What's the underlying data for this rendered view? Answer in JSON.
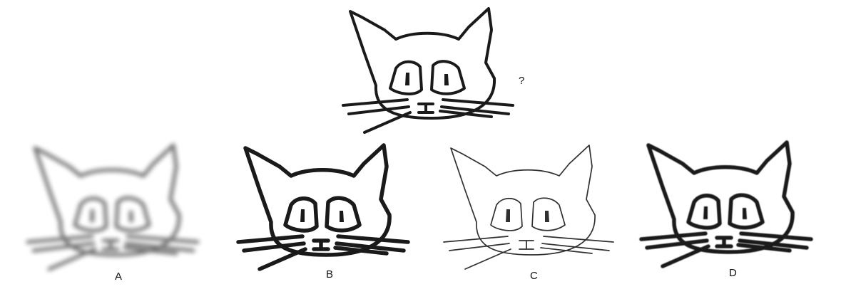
{
  "question": {
    "mark": "?",
    "drawing_icon": "cat-face"
  },
  "options": [
    {
      "label": "A",
      "drawing_icon": "cat-face",
      "appearance": "blurred"
    },
    {
      "label": "B",
      "drawing_icon": "cat-face",
      "appearance": "thick-sharp"
    },
    {
      "label": "C",
      "drawing_icon": "cat-face",
      "appearance": "thin-faint"
    },
    {
      "label": "D",
      "drawing_icon": "cat-face",
      "appearance": "thick-soft"
    }
  ]
}
